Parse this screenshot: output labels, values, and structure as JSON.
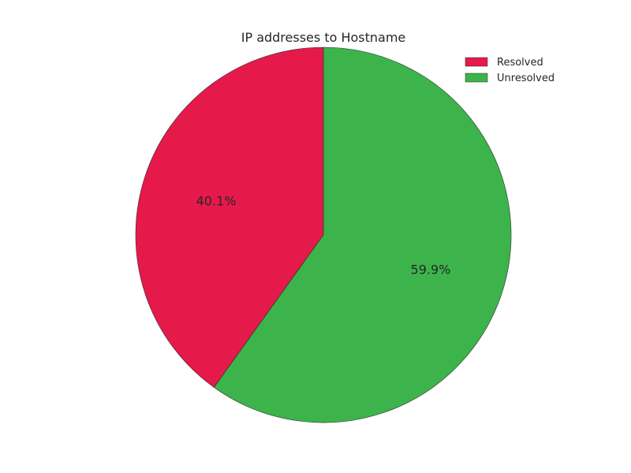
{
  "chart_data": {
    "type": "pie",
    "title": "IP addresses to Hostname",
    "categories": [
      "Resolved",
      "Unresolved"
    ],
    "values": [
      40.1,
      59.9
    ],
    "labels": [
      "40.1%",
      "59.9%"
    ],
    "colors": [
      "#e6194b",
      "#3cb44b"
    ],
    "start_angle_deg": 90,
    "direction": "counterclockwise",
    "legend": {
      "placement": "top-right",
      "entries": [
        "Resolved",
        "Unresolved"
      ]
    }
  }
}
